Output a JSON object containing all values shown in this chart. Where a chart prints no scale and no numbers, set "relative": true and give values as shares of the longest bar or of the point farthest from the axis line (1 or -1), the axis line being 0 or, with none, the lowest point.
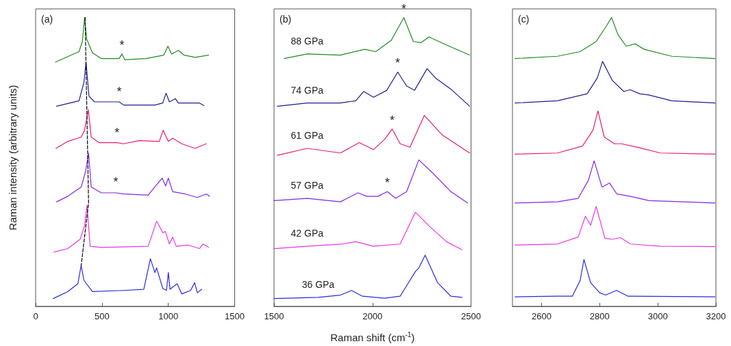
{
  "chart_data": [
    {
      "type": "line",
      "relative": true,
      "ylabel": "Raman intensity (arbitrary units)",
      "xlim": [
        0,
        1500
      ],
      "xticks": [
        0,
        500,
        1000,
        1500
      ],
      "annotations": [
        "(a)",
        {
          "text": "*",
          "x": 650,
          "y": 0.874
        },
        {
          "text": "*",
          "x": 630,
          "y": 0.712
        },
        {
          "text": "*",
          "x": 613,
          "y": 0.57
        },
        {
          "text": "*",
          "x": 604,
          "y": 0.4
        }
      ],
      "series": [
        {
          "color": "#1f8a1f",
          "x": [
            150,
            327,
            352,
            369,
            385,
            428,
            495,
            630,
            650,
            672,
            832,
            966,
            997,
            1025,
            1076,
            1118,
            1202,
            1303
          ],
          "values": [
            0.846,
            0.882,
            0.917,
            1.0,
            0.925,
            0.878,
            0.858,
            0.858,
            0.874,
            0.854,
            0.858,
            0.87,
            0.901,
            0.874,
            0.886,
            0.87,
            0.862,
            0.87
          ]
        },
        {
          "color": "#1c1c96",
          "x": [
            158,
            327,
            364,
            380,
            402,
            444,
            571,
            630,
            663,
            899,
            958,
            983,
            1008,
            1054,
            1075,
            1235,
            1269
          ],
          "values": [
            0.693,
            0.712,
            0.775,
            0.846,
            0.728,
            0.708,
            0.708,
            0.708,
            0.697,
            0.697,
            0.704,
            0.738,
            0.708,
            0.719,
            0.704,
            0.704,
            0.695
          ]
        },
        {
          "color": "#ea1a70",
          "x": [
            153,
            242,
            343,
            369,
            397,
            419,
            478,
            613,
            663,
            781,
            932,
            961,
            1000,
            1033,
            1101,
            1202,
            1286
          ],
          "values": [
            0.547,
            0.571,
            0.586,
            0.61,
            0.681,
            0.586,
            0.567,
            0.567,
            0.563,
            0.574,
            0.571,
            0.61,
            0.571,
            0.582,
            0.563,
            0.547,
            0.563
          ]
        },
        {
          "color": "#8026e6",
          "x": [
            158,
            242,
            343,
            377,
            399,
            419,
            495,
            604,
            663,
            848,
            912,
            954,
            980,
            1000,
            1033,
            1126,
            1219,
            1286,
            1311
          ],
          "values": [
            0.362,
            0.381,
            0.413,
            0.468,
            0.531,
            0.413,
            0.393,
            0.393,
            0.389,
            0.385,
            0.421,
            0.444,
            0.417,
            0.444,
            0.397,
            0.389,
            0.377,
            0.389,
            0.381
          ]
        },
        {
          "color": "#e635e6",
          "x": [
            138,
            242,
            335,
            369,
            387,
            411,
            495,
            848,
            912,
            958,
            978,
            1008,
            1033,
            1059,
            1151,
            1235,
            1261,
            1303
          ],
          "values": [
            0.188,
            0.2,
            0.232,
            0.279,
            0.35,
            0.208,
            0.204,
            0.208,
            0.295,
            0.255,
            0.259,
            0.216,
            0.24,
            0.208,
            0.212,
            0.2,
            0.216,
            0.204
          ]
        },
        {
          "color": "#2828e0",
          "x": [
            133,
            242,
            318,
            343,
            364,
            428,
            663,
            815,
            865,
            899,
            912,
            958,
            986,
            1000,
            1013,
            1042,
            1067,
            1101,
            1168,
            1198,
            1219,
            1252
          ],
          "values": [
            0.027,
            0.051,
            0.078,
            0.141,
            0.09,
            0.051,
            0.055,
            0.059,
            0.165,
            0.117,
            0.133,
            0.062,
            0.055,
            0.117,
            0.059,
            0.07,
            0.078,
            0.043,
            0.055,
            0.082,
            0.047,
            0.059
          ]
        },
        {
          "color": "#000000",
          "line_style": "dashed",
          "x": [
            373,
            399,
            343
          ],
          "values": [
            1.0,
            0.358,
            0.141
          ]
        }
      ]
    },
    {
      "type": "line",
      "relative": true,
      "xlabel": "Raman shift (cm$^{-1}$)",
      "xlim": [
        1500,
        2500
      ],
      "xticks": [
        1500,
        2000,
        2500
      ],
      "annotations": [
        "(b)",
        {
          "text": "*",
          "x": 2159,
          "y": 1.0
        },
        {
          "text": "*",
          "x": 2128,
          "y": 0.811
        },
        {
          "text": "*",
          "x": 2100,
          "y": 0.614
        },
        {
          "text": "*",
          "x": 2075,
          "y": 0.397
        }
      ],
      "series": [
        {
          "name": "88 GPa",
          "color": "#1f8a1f",
          "x": [
            1551,
            1668,
            1837,
            1960,
            2016,
            2095,
            2159,
            2207,
            2246,
            2286,
            2375,
            2493
          ],
          "values": [
            0.858,
            0.874,
            0.87,
            0.89,
            0.882,
            0.921,
            1.0,
            0.917,
            0.913,
            0.933,
            0.905,
            0.87
          ]
        },
        {
          "name": "74 GPa",
          "color": "#1c1c96",
          "x": [
            1517,
            1668,
            1837,
            1915,
            1955,
            2005,
            2072,
            2128,
            2173,
            2213,
            2277,
            2319,
            2398,
            2493
          ],
          "values": [
            0.693,
            0.704,
            0.704,
            0.712,
            0.744,
            0.724,
            0.748,
            0.811,
            0.763,
            0.748,
            0.823,
            0.791,
            0.752,
            0.693
          ]
        },
        {
          "name": "61 GPa",
          "color": "#ea1a70",
          "x": [
            1517,
            1668,
            1837,
            1932,
            2005,
            2061,
            2100,
            2140,
            2190,
            2263,
            2353,
            2493
          ],
          "values": [
            0.523,
            0.547,
            0.531,
            0.567,
            0.543,
            0.578,
            0.614,
            0.563,
            0.551,
            0.661,
            0.594,
            0.531
          ]
        },
        {
          "name": "57 GPa",
          "color": "#8026e6",
          "x": [
            1500,
            1668,
            1837,
            1926,
            1971,
            2027,
            2075,
            2117,
            2173,
            2235,
            2308,
            2398,
            2482
          ],
          "values": [
            0.366,
            0.374,
            0.362,
            0.393,
            0.381,
            0.381,
            0.397,
            0.374,
            0.397,
            0.507,
            0.46,
            0.397,
            0.358
          ]
        },
        {
          "name": "42 GPa",
          "color": "#e635e6",
          "x": [
            1500,
            1668,
            1848,
            1915,
            2005,
            2140,
            2218,
            2286,
            2375,
            2454
          ],
          "values": [
            0.2,
            0.208,
            0.216,
            0.224,
            0.208,
            0.216,
            0.326,
            0.279,
            0.224,
            0.196
          ]
        },
        {
          "name": "36 GPa",
          "color": "#2828e0",
          "x": [
            1500,
            1724,
            1837,
            1893,
            1949,
            2061,
            2140,
            2218,
            2235,
            2267,
            2330,
            2398,
            2454
          ],
          "values": [
            0.027,
            0.031,
            0.039,
            0.055,
            0.035,
            0.028,
            0.035,
            0.121,
            0.133,
            0.177,
            0.082,
            0.035,
            0.031
          ]
        }
      ]
    },
    {
      "type": "line",
      "relative": true,
      "xlim": [
        2500,
        3200
      ],
      "xticks": [
        2600,
        2800,
        3000,
        3200
      ],
      "annotations": [
        "(c)"
      ],
      "series": [
        {
          "color": "#1f8a1f",
          "x": [
            2509,
            2655,
            2733,
            2788,
            2824,
            2841,
            2863,
            2891,
            2922,
            2953,
            3048,
            3197
          ],
          "values": [
            0.858,
            0.866,
            0.882,
            0.917,
            0.972,
            1.0,
            0.941,
            0.901,
            0.909,
            0.89,
            0.866,
            0.858
          ]
        },
        {
          "color": "#1c1c96",
          "x": [
            2509,
            2655,
            2757,
            2792,
            2810,
            2843,
            2883,
            2905,
            2938,
            2969,
            3048,
            3197
          ],
          "values": [
            0.704,
            0.712,
            0.736,
            0.791,
            0.848,
            0.783,
            0.744,
            0.75,
            0.736,
            0.732,
            0.712,
            0.704
          ]
        },
        {
          "color": "#ea1a70",
          "x": [
            2509,
            2655,
            2741,
            2777,
            2794,
            2816,
            2851,
            2875,
            2930,
            3009,
            3197
          ],
          "values": [
            0.527,
            0.531,
            0.555,
            0.61,
            0.677,
            0.586,
            0.563,
            0.563,
            0.551,
            0.531,
            0.527
          ]
        },
        {
          "color": "#8026e6",
          "x": [
            2509,
            2655,
            2726,
            2761,
            2781,
            2808,
            2834,
            2859,
            2906,
            2969,
            3197
          ],
          "values": [
            0.358,
            0.362,
            0.374,
            0.436,
            0.504,
            0.413,
            0.427,
            0.389,
            0.381,
            0.366,
            0.358
          ]
        },
        {
          "color": "#e635e6",
          "x": [
            2509,
            2655,
            2726,
            2751,
            2769,
            2788,
            2818,
            2843,
            2871,
            2906,
            3009,
            3197
          ],
          "values": [
            0.212,
            0.216,
            0.24,
            0.312,
            0.281,
            0.346,
            0.236,
            0.232,
            0.238,
            0.216,
            0.208,
            0.207
          ]
        },
        {
          "color": "#2828e0",
          "x": [
            2509,
            2655,
            2706,
            2733,
            2746,
            2769,
            2800,
            2820,
            2858,
            2898,
            3197
          ],
          "values": [
            0.033,
            0.035,
            0.035,
            0.09,
            0.162,
            0.082,
            0.047,
            0.039,
            0.055,
            0.035,
            0.033
          ]
        }
      ]
    }
  ]
}
